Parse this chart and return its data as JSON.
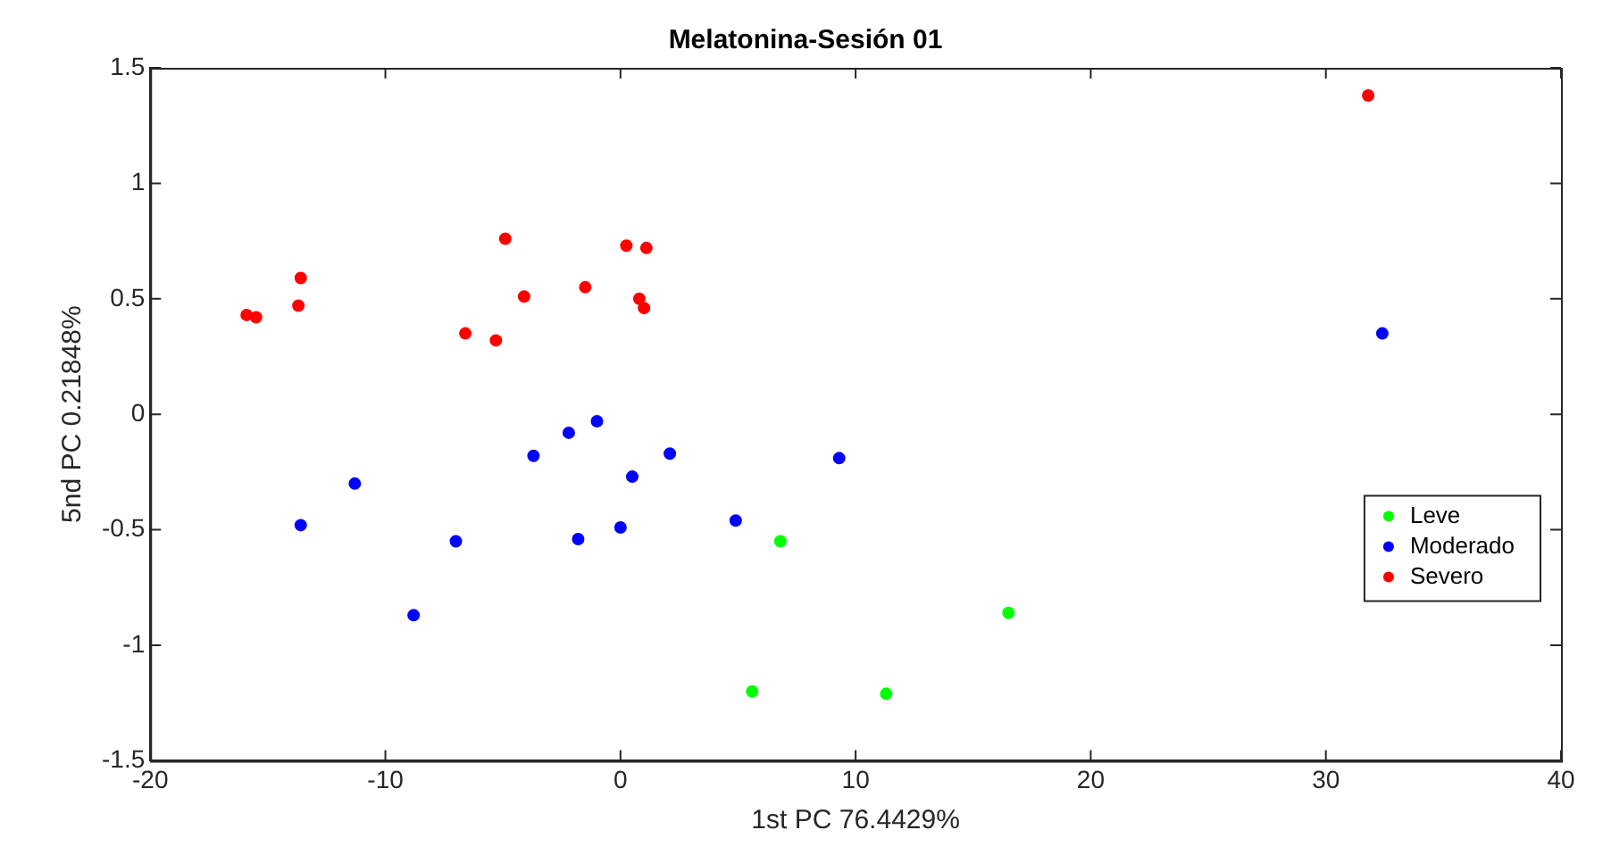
{
  "chart_data": {
    "type": "scatter",
    "title": "Melatonina-Sesión 01",
    "xlabel": "1st PC 76.4429%",
    "ylabel": "5nd PC 0.21848%",
    "xlim": [
      -20,
      40
    ],
    "xticks": [
      -20,
      -10,
      0,
      10,
      20,
      30,
      40
    ],
    "ylim": [
      -1.5,
      1.5
    ],
    "yticks": [
      -1.5,
      -1,
      -0.5,
      0,
      0.5,
      1,
      1.5
    ],
    "grid": false,
    "legend": "bottom right",
    "marker": "circle",
    "series": [
      {
        "name": "Leve",
        "color": "#00ff00",
        "x": [
          6.8,
          5.6,
          11.3,
          16.5
        ],
        "values": [
          -0.55,
          -1.2,
          -1.21,
          -0.86
        ]
      },
      {
        "name": "Moderado",
        "color": "#0000ff",
        "x": [
          32.4,
          -13.6,
          -11.3,
          -8.8,
          -7.0,
          -3.7,
          -2.2,
          -1.0,
          -1.8,
          0.0,
          0.5,
          2.1,
          4.9,
          9.3
        ],
        "values": [
          0.35,
          -0.48,
          -0.3,
          -0.87,
          -0.55,
          -0.18,
          -0.08,
          -0.03,
          -0.54,
          -0.49,
          -0.27,
          -0.17,
          -0.46,
          -0.19
        ]
      },
      {
        "name": "Severo",
        "color": "#ff0000",
        "x": [
          31.8,
          -15.9,
          -15.5,
          -13.6,
          -13.7,
          -6.6,
          -5.3,
          -4.9,
          -4.1,
          -1.5,
          0.25,
          1.1,
          0.8,
          1.0
        ],
        "values": [
          1.38,
          0.43,
          0.42,
          0.59,
          0.47,
          0.35,
          0.32,
          0.76,
          0.51,
          0.55,
          0.73,
          0.72,
          0.5,
          0.46
        ]
      }
    ]
  }
}
